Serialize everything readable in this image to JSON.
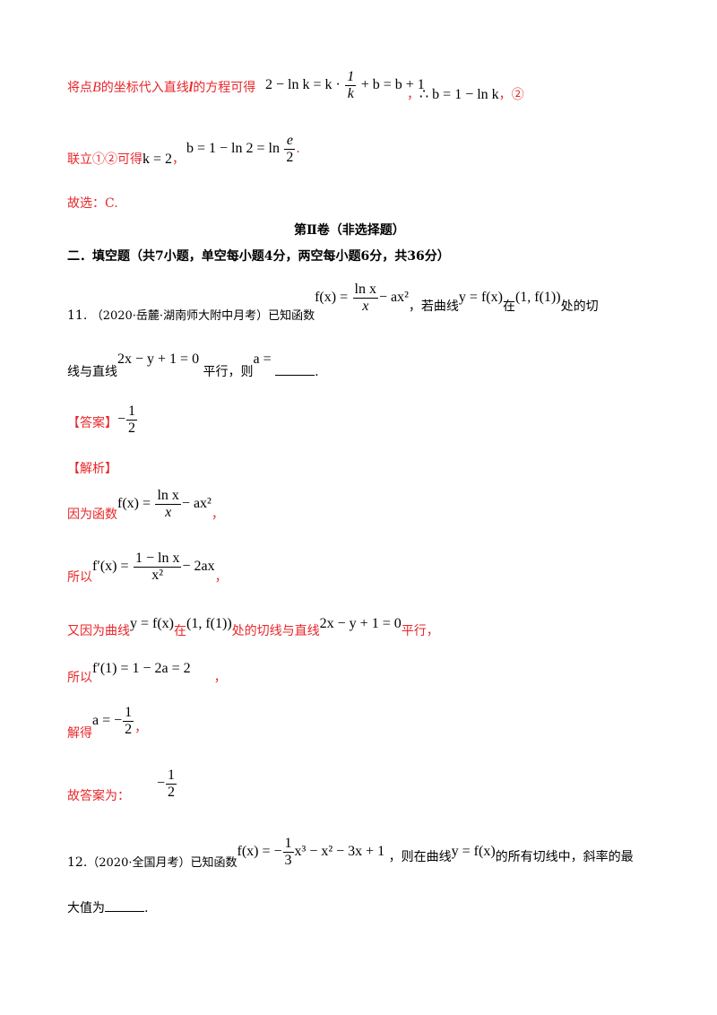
{
  "colors": {
    "answer_red": "#e8262a",
    "text": "#000000"
  },
  "line_substitute": {
    "t1": "将点",
    "B": "B",
    "t2": "的坐标代入直线",
    "l": "l",
    "t3": "的方程可得",
    "eq_left": "2 − ln k = k ·",
    "frac_num": "1",
    "frac_den": "k",
    "eq_right": "+ b = b + 1",
    "sep": "，",
    "therefore": "∴ b = 1 − ln k",
    "mark": "，②"
  },
  "line_combine": {
    "t1": "联立①②可得",
    "k_eq": "k = 2",
    "sep": "，",
    "b_eq": "b = 1 − ln 2 = ln",
    "frac_num": "e",
    "frac_den": "2",
    "end": "."
  },
  "line_choice": {
    "text": "故选：C."
  },
  "section_title": {
    "text": "第Ⅱ卷（非选择题）"
  },
  "part_title": {
    "text": "二．填空题（共7小题，单空每小题4分，两空每小题6分，共36分）"
  },
  "q11": {
    "number": "11.",
    "source": "（2020·岳麓·湖南师大附中月考）已知函数",
    "f_lhs": "f(x) =",
    "f_num": "ln x",
    "f_den": "x",
    "f_tail": "− ax²",
    "t2": "，若曲线",
    "curve": "y = f(x)",
    "t3": "在",
    "point": "(1, f(1))",
    "t4": "处的切",
    "line2_t1": "线与直线",
    "line_eq": "2x − y + 1 = 0",
    "line2_t2": "平行，则",
    "a_eq": "a =",
    "end": "."
  },
  "answer11": {
    "label": "【答案】",
    "sign": "−",
    "num": "1",
    "den": "2"
  },
  "analysis11": {
    "label": "【解析】",
    "s1_t": "因为函数",
    "s1_lhs": "f(x) =",
    "s1_num": "ln x",
    "s1_den": "x",
    "s1_tail": "− ax²",
    "s1_end": "，",
    "s2_t": "所以",
    "s2_lhs": "f′(x) =",
    "s2_num": "1 − ln x",
    "s2_den": "x²",
    "s2_tail": "− 2ax",
    "s2_end": "，",
    "s3_t1": "又因为曲线",
    "s3_curve": "y = f(x)",
    "s3_t2": "在",
    "s3_point": "(1, f(1))",
    "s3_t3": "处的切线与直线",
    "s3_line": "2x − y + 1 = 0",
    "s3_t4": "平行，",
    "s4_t": "所以",
    "s4_eq": "f′(1) = 1 − 2a = 2",
    "s4_end": "，",
    "s5_t": "解得",
    "s5_lhs": "a = −",
    "s5_num": "1",
    "s5_den": "2",
    "s5_end": "，",
    "s6_t": "故答案为：",
    "s6_sign": "−",
    "s6_num": "1",
    "s6_den": "2"
  },
  "q12": {
    "number": "12.",
    "source": "（2020·全国月考）已知函数",
    "f_lhs": "f(x) = −",
    "f_num": "1",
    "f_den": "3",
    "f_tail": "x³ − x² − 3x + 1",
    "t2": "，则在曲线",
    "curve": "y = f(x)",
    "t3": "的所有切线中，斜率的最",
    "line2": "大值为",
    "end": "."
  }
}
